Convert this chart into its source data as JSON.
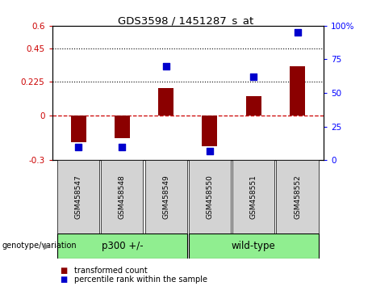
{
  "title": "GDS3598 / 1451287_s_at",
  "samples": [
    "GSM458547",
    "GSM458548",
    "GSM458549",
    "GSM458550",
    "GSM458551",
    "GSM458552"
  ],
  "transformed_count": [
    -0.18,
    -0.155,
    0.185,
    -0.205,
    0.13,
    0.33
  ],
  "percentile_rank": [
    10,
    10,
    70,
    7,
    62,
    95
  ],
  "ylim_left": [
    -0.3,
    0.6
  ],
  "ylim_right": [
    0,
    100
  ],
  "yticks_left": [
    -0.3,
    0.0,
    0.225,
    0.45,
    0.6
  ],
  "yticks_right": [
    0,
    25,
    50,
    75,
    100
  ],
  "hlines": [
    0.225,
    0.45
  ],
  "bar_color": "#8B0000",
  "dot_color": "#0000CD",
  "bar_width": 0.35,
  "group_label": "genotype/variation",
  "groups_info": [
    {
      "label": "p300 +/-",
      "start": 0,
      "end": 2
    },
    {
      "label": "wild-type",
      "start": 3,
      "end": 5
    }
  ],
  "green_color": "#90EE90",
  "gray_color": "#d3d3d3",
  "legend_items": [
    {
      "label": "transformed count",
      "color": "#8B0000"
    },
    {
      "label": "percentile rank within the sample",
      "color": "#0000CD"
    }
  ]
}
